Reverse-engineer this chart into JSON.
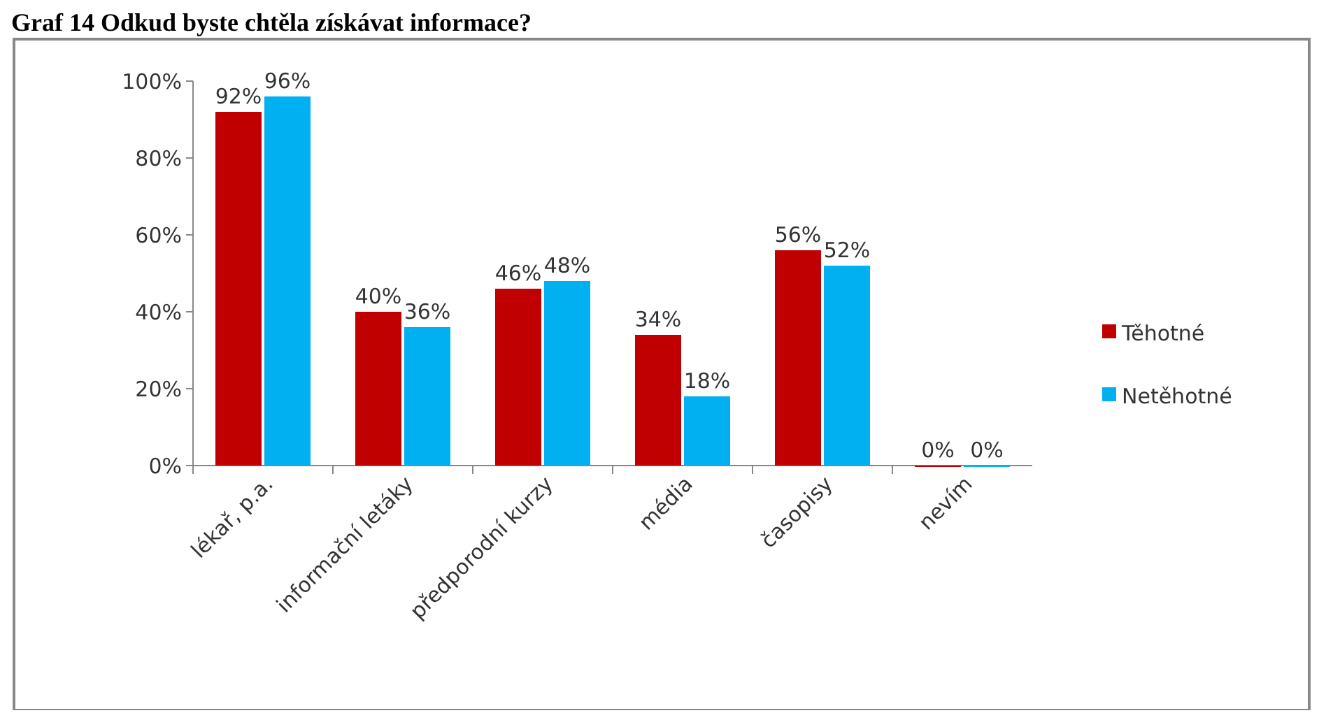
{
  "chart_data": {
    "type": "bar",
    "title": "Graf 14 Odkud byste chtěla získávat informace?",
    "categories": [
      "lékař, p.a.",
      "informační letáky",
      "předporodní kurzy",
      "média",
      "časopisy",
      "nevím"
    ],
    "series": [
      {
        "name": "Těhotné",
        "color": "#c00000",
        "values": [
          92,
          40,
          46,
          34,
          56,
          0
        ],
        "value_labels": [
          "92%",
          "40%",
          "46%",
          "34%",
          "56%",
          "0%"
        ]
      },
      {
        "name": "Netěhotné",
        "color": "#00b0f0",
        "values": [
          96,
          36,
          48,
          18,
          52,
          0
        ],
        "value_labels": [
          "96%",
          "36%",
          "48%",
          "18%",
          "52%",
          "0%"
        ]
      }
    ],
    "ylim": [
      0,
      100
    ],
    "yticks": [
      {
        "value": 0,
        "label": "0%"
      },
      {
        "value": 20,
        "label": "20%"
      },
      {
        "value": 40,
        "label": "40%"
      },
      {
        "value": 60,
        "label": "60%"
      },
      {
        "value": 80,
        "label": "80%"
      },
      {
        "value": 100,
        "label": "100%"
      }
    ],
    "legend": "right"
  }
}
